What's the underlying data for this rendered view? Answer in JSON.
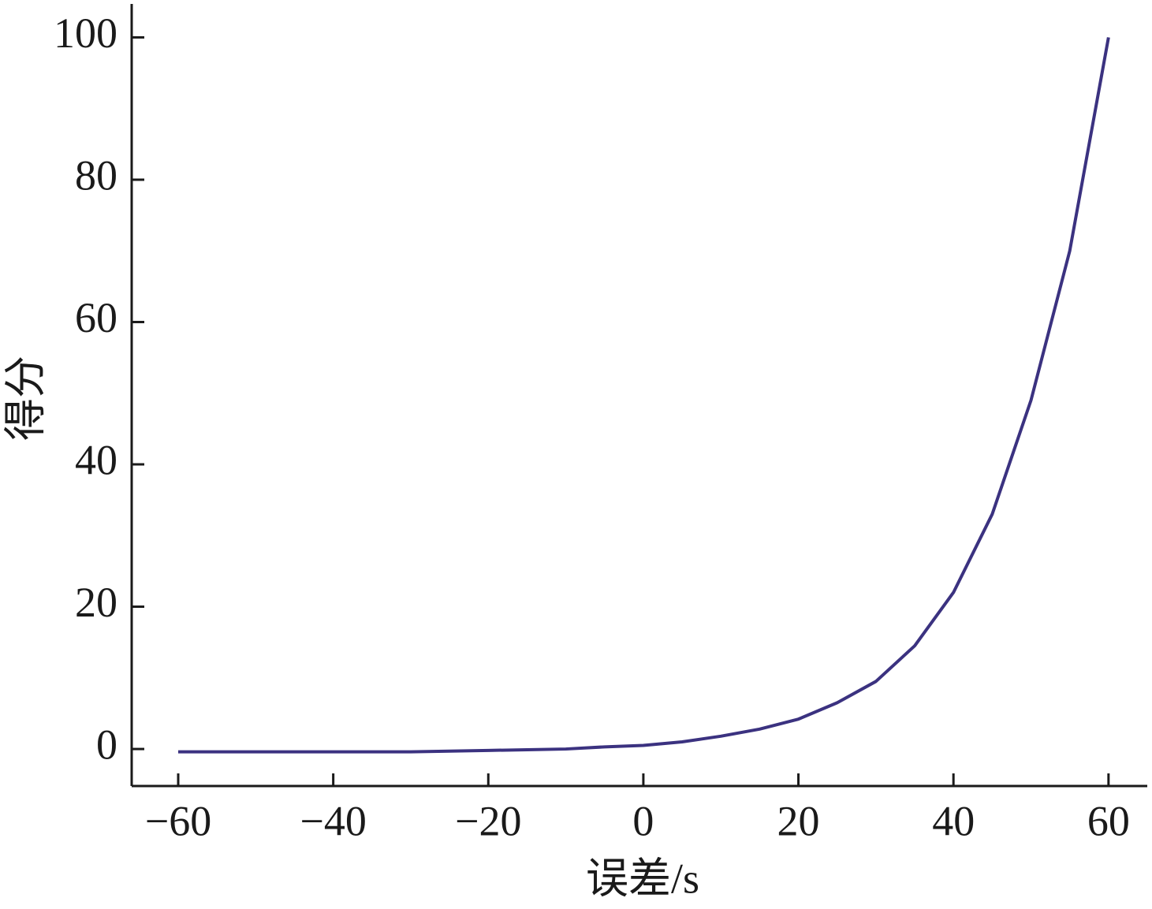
{
  "chart_data": {
    "type": "line",
    "x_label": "误差/s",
    "y_label": "得分",
    "x": [
      -60,
      -50,
      -40,
      -30,
      -25,
      -20,
      -15,
      -10,
      -5,
      0,
      5,
      10,
      15,
      20,
      25,
      30,
      35,
      40,
      45,
      50,
      55,
      60
    ],
    "series": [
      {
        "color": "#3b3280",
        "values": [
          -0.4,
          -0.4,
          -0.4,
          -0.4,
          -0.3,
          -0.2,
          -0.1,
          0,
          0.3,
          0.5,
          1,
          1.8,
          2.8,
          4.2,
          6.5,
          9.5,
          14.5,
          22,
          33,
          49,
          70,
          100
        ]
      }
    ],
    "xlim": [
      -66,
      65
    ],
    "xticks": [
      {
        "value": -60,
        "label": "−60"
      },
      {
        "value": -40,
        "label": "−40"
      },
      {
        "value": -20,
        "label": "−20"
      },
      0,
      20,
      40,
      60
    ],
    "ylim": [
      -5.2,
      104.7
    ],
    "yticks": [
      0,
      20,
      40,
      60,
      80,
      100
    ]
  }
}
